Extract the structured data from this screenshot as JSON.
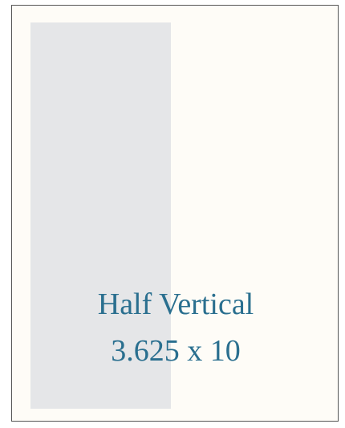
{
  "title": "Half Vertical",
  "size": "3.625 x 10"
}
